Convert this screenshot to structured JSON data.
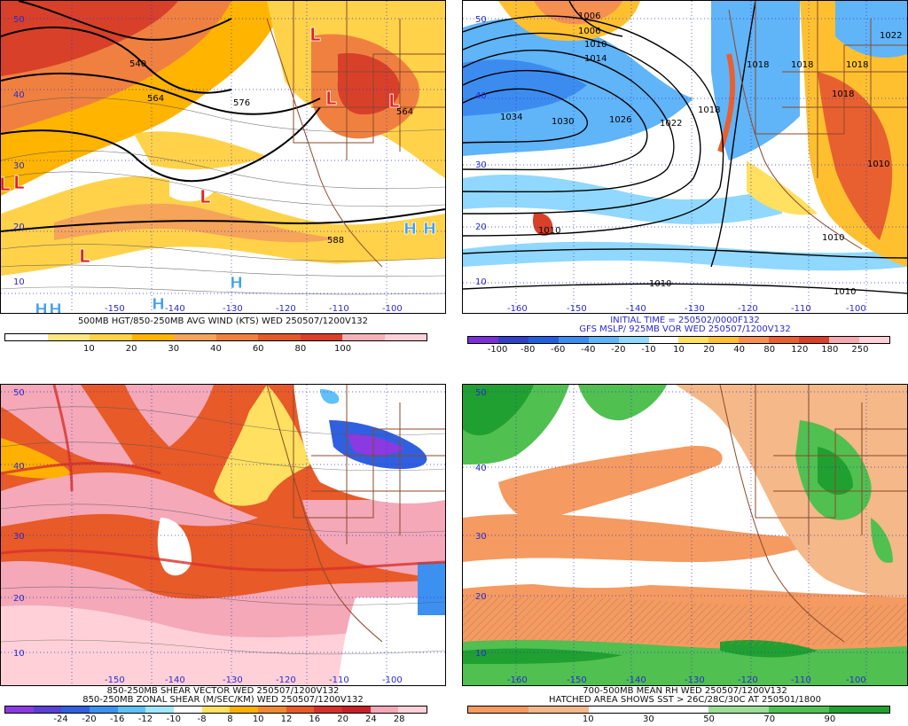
{
  "panels": [
    {
      "id": "p1",
      "caption": [
        "500MB HGT/850-250MB AVG WIND (KTS) WED 250507/1200V132"
      ],
      "colorbar": {
        "ticks": [
          "10",
          "20",
          "30",
          "40",
          "60",
          "80",
          "100"
        ],
        "colors": [
          "#ffffff",
          "#ffe680",
          "#ffd24a",
          "#ffb400",
          "#f5a45a",
          "#f08040",
          "#e05a2a",
          "#d8402a",
          "#f4b0b8",
          "#ffd0d8"
        ]
      },
      "lat_labels": [
        "50",
        "40",
        "30",
        "20",
        "10"
      ],
      "lon_labels": [
        "-150",
        "-140",
        "-130",
        "-120",
        "-110",
        "-100"
      ],
      "contour_labels": [
        "540",
        "564",
        "576",
        "564",
        "588"
      ],
      "symbols": [
        "L",
        "L",
        "L",
        "L",
        "L",
        "L",
        "L",
        "H",
        "H",
        "H",
        "H",
        "H",
        "H"
      ]
    },
    {
      "id": "p2",
      "caption": [
        "INITIAL TIME = 250502/0000F132",
        "GFS MSLP/ 925MB VOR WED 250507/1200V132"
      ],
      "colorbar": {
        "ticks": [
          "-100",
          "-80",
          "-60",
          "-40",
          "-20",
          "-10",
          "10",
          "20",
          "40",
          "80",
          "120",
          "180",
          "250"
        ],
        "colors": [
          "#7a30d8",
          "#3040c8",
          "#2060e0",
          "#3c8cf0",
          "#60b4f8",
          "#90d8ff",
          "#ffffff",
          "#ffe060",
          "#ffc030",
          "#f59050",
          "#e86030",
          "#d84028",
          "#f4a8b0",
          "#ffd0d8"
        ]
      },
      "lat_labels": [
        "50",
        "40",
        "30",
        "20",
        "10"
      ],
      "lon_labels": [
        "-160",
        "-150",
        "-140",
        "-130",
        "-120",
        "-110",
        "-100"
      ],
      "contour_labels": [
        "1006",
        "1006",
        "1010",
        "1014",
        "1034",
        "1030",
        "1026",
        "1022",
        "1018",
        "1010",
        "1010",
        "1010",
        "1018",
        "1018",
        "1018",
        "1022",
        "1018",
        "1010",
        "1010"
      ]
    },
    {
      "id": "p3",
      "caption": [
        "850-250MB SHEAR VECTOR WED 250507/1200V132",
        "850-250MB ZONAL SHEAR (M/SEC/KM) WED 250507/1200V132"
      ],
      "colorbar": {
        "ticks": [
          "-24",
          "-20",
          "-16",
          "-12",
          "-10",
          "-8",
          "8",
          "10",
          "12",
          "16",
          "20",
          "24",
          "28"
        ],
        "colors": [
          "#8a3ae0",
          "#5a40d8",
          "#3060e0",
          "#3c90f0",
          "#60c0f8",
          "#a0e8ff",
          "#ffffff",
          "#ffe060",
          "#ffb000",
          "#f08a30",
          "#e85a28",
          "#d8302a",
          "#c82028",
          "#f4a8b8",
          "#ffd0d8"
        ]
      },
      "lat_labels": [
        "50",
        "40",
        "30",
        "20",
        "10"
      ],
      "lon_labels": [
        "-150",
        "-140",
        "-130",
        "-120",
        "-110",
        "-100"
      ]
    },
    {
      "id": "p4",
      "caption": [
        "700-500MB MEAN RH WED 250507/1200V132",
        "HATCHED AREA SHOWS SST > 26C/28C/30C AT 250501/1800"
      ],
      "colorbar": {
        "ticks": [
          "10",
          "30",
          "50",
          "70",
          "90"
        ],
        "colors": [
          "#f59a60",
          "#f5b888",
          "#ffffff",
          "#ffffff",
          "#9ade98",
          "#50c050",
          "#20a030"
        ]
      },
      "lat_labels": [
        "50",
        "40",
        "30",
        "20",
        "10"
      ],
      "lon_labels": [
        "-160",
        "-150",
        "-140",
        "-130",
        "-120",
        "-110",
        "-100"
      ]
    }
  ],
  "colors": {
    "border": "#8b4a2a",
    "grid": "#3030d0",
    "low": "#e8201a",
    "high": "#40a0f0"
  }
}
